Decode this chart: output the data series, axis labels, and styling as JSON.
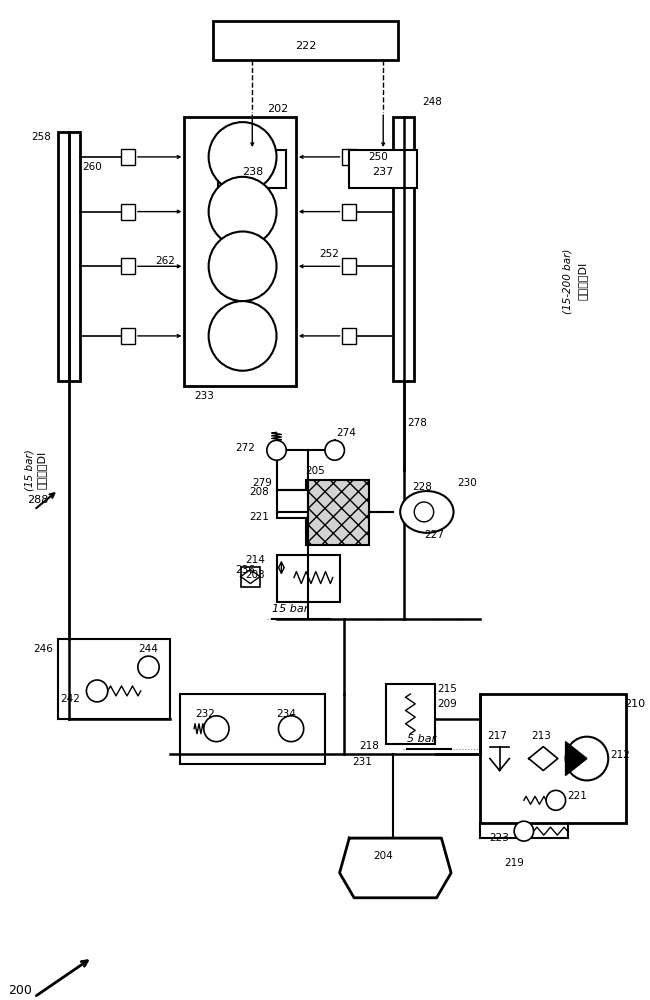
{
  "bg_color": "#ffffff",
  "fixed_text": "固定高压DI",
  "fixed_sub": "(15 bar)",
  "variable_text": "可变高压DI",
  "variable_sub": "(15-200 bar)"
}
